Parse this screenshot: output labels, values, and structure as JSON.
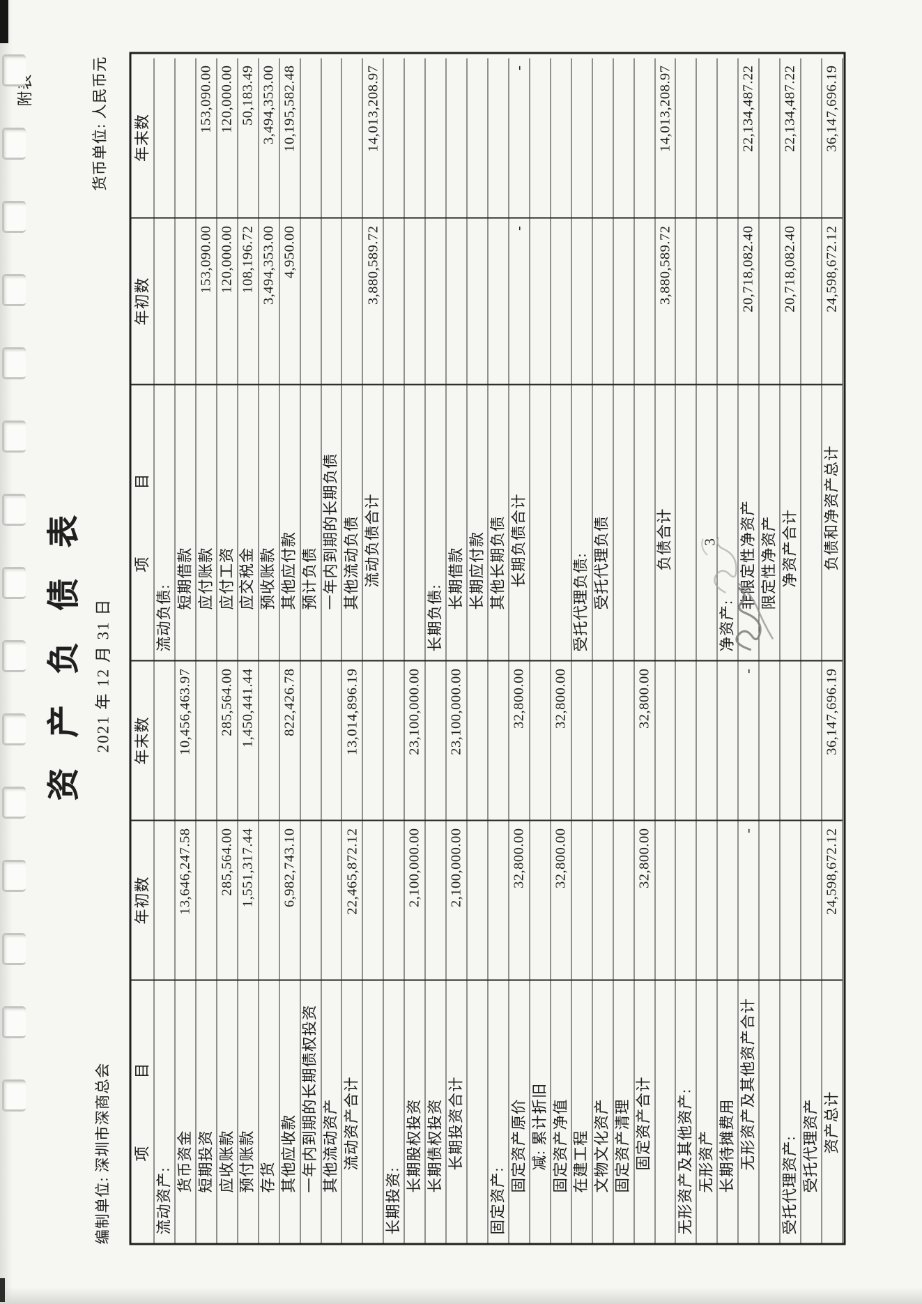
{
  "page": {
    "attachment_label": "附表一",
    "title": "资 产 负 债 表",
    "date_line": "2021 年 12 月 31 日",
    "prepared_by": "编制单位: 深圳市深商总会",
    "currency_unit": "货币单位: 人民币元",
    "page_number": "3"
  },
  "table": {
    "header": {
      "item1": "项",
      "item2": "目",
      "begin": "年初数",
      "end": "年末数"
    },
    "rows": [
      {
        "a": "流动资产:",
        "ai": 0,
        "ab": "",
        "ae": "",
        "l": "流动负债:",
        "li": 0,
        "lb": "",
        "le": ""
      },
      {
        "a": "货币资金",
        "ai": 1,
        "ab": "13,646,247.58",
        "ae": "10,456,463.97",
        "l": "短期借款",
        "li": 1,
        "lb": "",
        "le": ""
      },
      {
        "a": "短期投资",
        "ai": 1,
        "ab": "",
        "ae": "",
        "l": "应付账款",
        "li": 1,
        "lb": "153,090.00",
        "le": "153,090.00"
      },
      {
        "a": "应收账款",
        "ai": 1,
        "ab": "285,564.00",
        "ae": "285,564.00",
        "l": "应付工资",
        "li": 1,
        "lb": "120,000.00",
        "le": "120,000.00"
      },
      {
        "a": "预付账款",
        "ai": 1,
        "ab": "1,551,317.44",
        "ae": "1,450,441.44",
        "l": "应交税金",
        "li": 1,
        "lb": "108,196.72",
        "le": "50,183.49"
      },
      {
        "a": "存货",
        "ai": 1,
        "ab": "",
        "ae": "",
        "l": "预收账款",
        "li": 1,
        "lb": "3,494,353.00",
        "le": "3,494,353.00"
      },
      {
        "a": "其他应收款",
        "ai": 1,
        "ab": "6,982,743.10",
        "ae": "822,426.78",
        "l": "其他应付款",
        "li": 1,
        "lb": "4,950.00",
        "le": "10,195,582.48"
      },
      {
        "a": "一年内到期的长期债权投资",
        "ai": 1,
        "ab": "",
        "ae": "",
        "l": "预计负债",
        "li": 1,
        "lb": "",
        "le": ""
      },
      {
        "a": "其他流动资产",
        "ai": 1,
        "ab": "",
        "ae": "",
        "l": "一年内到期的长期负债",
        "li": 1,
        "lb": "",
        "le": ""
      },
      {
        "a": "流动资产合计",
        "ai": 2,
        "ab": "22,465,872.12",
        "ae": "13,014,896.19",
        "l": "其他流动负债",
        "li": 1,
        "lb": "",
        "le": ""
      },
      {
        "a": "",
        "ai": 0,
        "ab": "",
        "ae": "",
        "l": "流动负债合计",
        "li": 2,
        "lb": "3,880,589.72",
        "le": "14,013,208.97"
      },
      {
        "a": "长期投资:",
        "ai": 0,
        "ab": "",
        "ae": "",
        "l": "",
        "li": 0,
        "lb": "",
        "le": ""
      },
      {
        "a": "长期股权投资",
        "ai": 1,
        "ab": "2,100,000.00",
        "ae": "23,100,000.00",
        "l": "",
        "li": 0,
        "lb": "",
        "le": ""
      },
      {
        "a": "长期债权投资",
        "ai": 1,
        "ab": "",
        "ae": "",
        "l": "长期负债:",
        "li": 0,
        "lb": "",
        "le": ""
      },
      {
        "a": "长期投资合计",
        "ai": 2,
        "ab": "2,100,000.00",
        "ae": "23,100,000.00",
        "l": "长期借款",
        "li": 1,
        "lb": "",
        "le": ""
      },
      {
        "a": "",
        "ai": 0,
        "ab": "",
        "ae": "",
        "l": "长期应付款",
        "li": 1,
        "lb": "",
        "le": ""
      },
      {
        "a": "固定资产:",
        "ai": 0,
        "ab": "",
        "ae": "",
        "l": "其他长期负债",
        "li": 1,
        "lb": "",
        "le": ""
      },
      {
        "a": "固定资产原价",
        "ai": 1,
        "ab": "32,800.00",
        "ae": "32,800.00",
        "l": "长期负债合计",
        "li": 2,
        "lb": "-",
        "le": "-"
      },
      {
        "a": "减:  累计折旧",
        "ai": 2,
        "ab": "",
        "ae": "",
        "l": "",
        "li": 0,
        "lb": "",
        "le": ""
      },
      {
        "a": "固定资产净值",
        "ai": 1,
        "ab": "32,800.00",
        "ae": "32,800.00",
        "l": "",
        "li": 0,
        "lb": "",
        "le": ""
      },
      {
        "a": "在建工程",
        "ai": 1,
        "ab": "",
        "ae": "",
        "l": "受托代理负债:",
        "li": 0,
        "lb": "",
        "le": ""
      },
      {
        "a": "文物文化资产",
        "ai": 1,
        "ab": "",
        "ae": "",
        "l": "受托代理负债",
        "li": 1,
        "lb": "",
        "le": ""
      },
      {
        "a": "固定资产清理",
        "ai": 1,
        "ab": "",
        "ae": "",
        "l": "",
        "li": 0,
        "lb": "",
        "le": ""
      },
      {
        "a": "固定资产合计",
        "ai": 2,
        "ab": "32,800.00",
        "ae": "32,800.00",
        "l": "",
        "li": 0,
        "lb": "",
        "le": ""
      },
      {
        "a": "",
        "ai": 0,
        "ab": "",
        "ae": "",
        "l": "负债合计",
        "li": 3,
        "lb": "3,880,589.72",
        "le": "14,013,208.97"
      },
      {
        "a": "无形资产及其他资产:",
        "ai": 0,
        "ab": "",
        "ae": "",
        "l": "",
        "li": 0,
        "lb": "",
        "le": ""
      },
      {
        "a": "无形资产",
        "ai": 1,
        "ab": "",
        "ae": "",
        "l": "",
        "li": 0,
        "lb": "",
        "le": ""
      },
      {
        "a": "长期待摊费用",
        "ai": 1,
        "ab": "",
        "ae": "",
        "l": "净资产:",
        "li": 0,
        "lb": "",
        "le": ""
      },
      {
        "a": "无形资产及其他资产合计",
        "ai": 2,
        "ab": "-",
        "ae": "-",
        "l": "非限定性净资产",
        "li": 1,
        "lb": "20,718,082.40",
        "le": "22,134,487.22"
      },
      {
        "a": "",
        "ai": 0,
        "ab": "",
        "ae": "",
        "l": "限定性净资产",
        "li": 1,
        "lb": "",
        "le": ""
      },
      {
        "a": "受托代理资产:",
        "ai": 0,
        "ab": "",
        "ae": "",
        "l": "净资产合计",
        "li": 2,
        "lb": "20,718,082.40",
        "le": "22,134,487.22"
      },
      {
        "a": "受托代理资产",
        "ai": 1,
        "ab": "",
        "ae": "",
        "l": "",
        "li": 0,
        "lb": "",
        "le": ""
      },
      {
        "a": "资产总计",
        "ai": 3,
        "ab": "24,598,672.12",
        "ae": "36,147,696.19",
        "l": "负债和净资产总计",
        "li": 3,
        "lb": "24,598,672.12",
        "le": "36,147,696.19"
      }
    ]
  },
  "artifacts": {
    "binding_holes": 15
  }
}
